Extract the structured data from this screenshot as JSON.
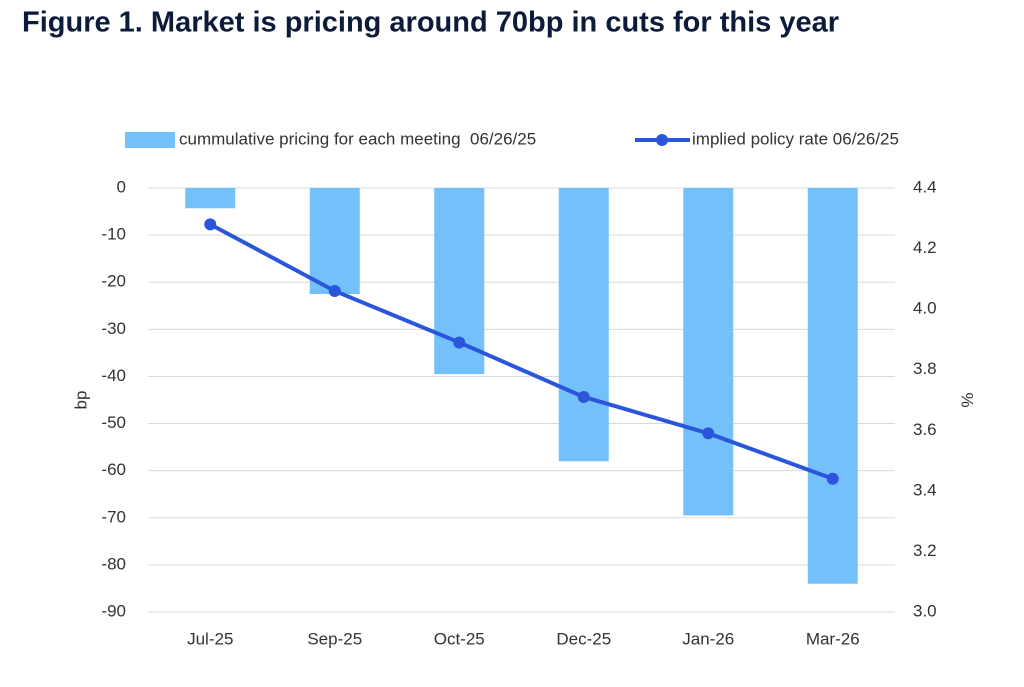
{
  "chart_data": {
    "type": "bar-line",
    "title": "Figure 1. Market is pricing around 70bp in cuts for this year",
    "y_label": "bp",
    "y2_label": "%",
    "categories": [
      "Jul-25",
      "Sep-25",
      "Oct-25",
      "Dec-25",
      "Jan-26",
      "Mar-26"
    ],
    "series": [
      {
        "name": "cummulative pricing for each meeting  06/26/25",
        "type": "bar",
        "color": "#74c0fa",
        "values": [
          -4.3,
          -22.5,
          -39.5,
          -58,
          -69.5,
          -84
        ]
      },
      {
        "name": "implied policy rate 06/26/25",
        "type": "line",
        "axis": "y2",
        "color": "#2b56db",
        "values": [
          4.28,
          4.06,
          3.89,
          3.71,
          3.59,
          3.44
        ]
      }
    ],
    "ylim": [
      -90,
      0
    ],
    "yticks": [
      0,
      -10,
      -20,
      -30,
      -40,
      -50,
      -60,
      -70,
      -80,
      -90
    ],
    "y2lim": [
      3.0,
      4.4
    ],
    "y2ticks": [
      4.4,
      4.2,
      {
        "value": 4.0,
        "label": "4.0"
      },
      3.8,
      3.6,
      3.4,
      3.2,
      {
        "value": 3.0,
        "label": "3.0"
      }
    ],
    "grid": true,
    "legend": "top"
  }
}
